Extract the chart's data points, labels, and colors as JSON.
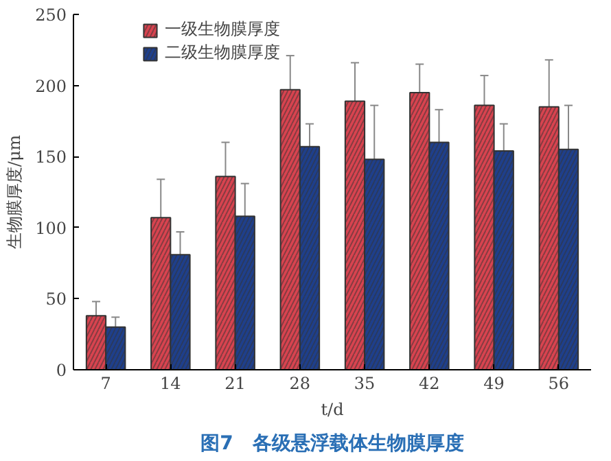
{
  "chart_data": {
    "type": "bar",
    "title": "图7　各级悬浮载体生物膜厚度",
    "xlabel": "t/d",
    "ylabel": "生物膜厚度/μm",
    "categories": [
      "7",
      "14",
      "21",
      "28",
      "35",
      "42",
      "49",
      "56"
    ],
    "series": [
      {
        "name": "一级生物膜厚度",
        "color": "#d9434f",
        "values": [
          38,
          107,
          136,
          197,
          189,
          195,
          186,
          185
        ],
        "errors": [
          10,
          27,
          24,
          24,
          27,
          20,
          21,
          33
        ]
      },
      {
        "name": "二级生物膜厚度",
        "color": "#1e3f8c",
        "values": [
          30,
          81,
          108,
          157,
          148,
          160,
          154,
          155
        ],
        "errors": [
          7,
          16,
          23,
          16,
          38,
          23,
          19,
          31
        ]
      }
    ],
    "ylim": [
      0,
      250
    ],
    "yticks": [
      0,
      50,
      100,
      150,
      200,
      250
    ],
    "grid": false,
    "legend": "top left"
  }
}
